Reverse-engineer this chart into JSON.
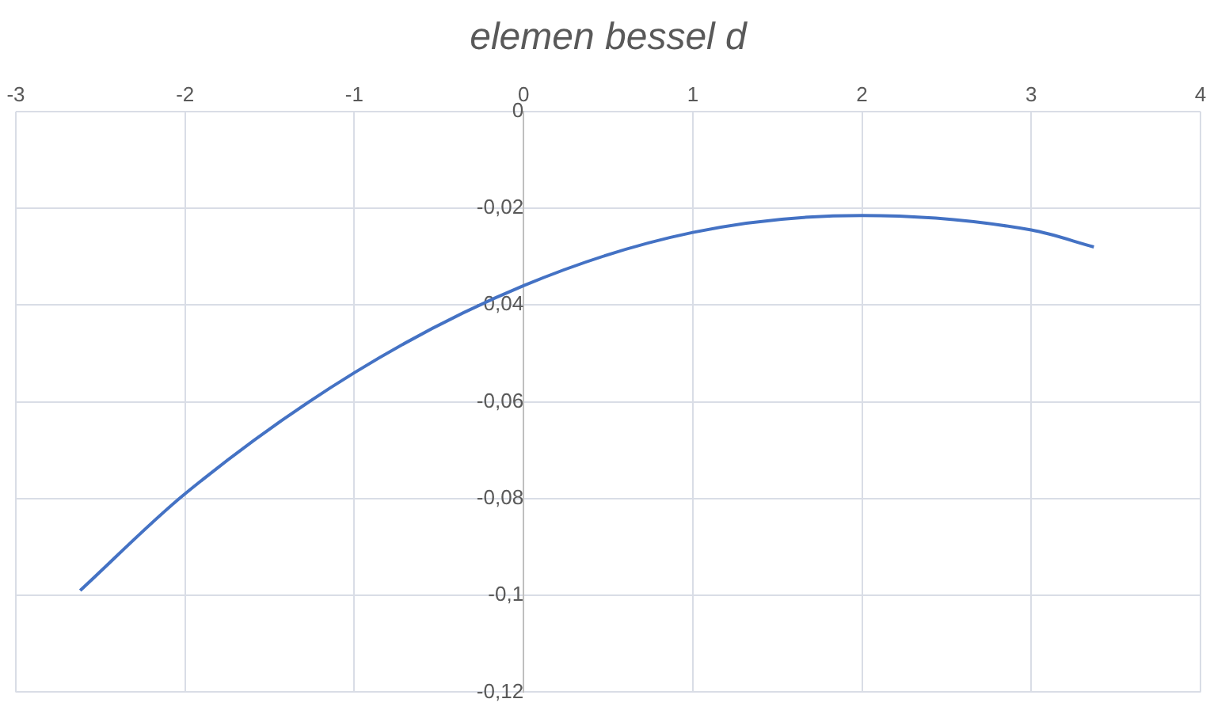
{
  "chart_data": {
    "type": "line",
    "title": "elemen bessel d",
    "series": [
      {
        "color": "#4472c4",
        "x": [
          -2.62,
          -2,
          -1,
          0,
          1,
          2,
          3,
          3.37
        ],
        "values": [
          -0.099,
          -0.079,
          -0.054,
          -0.036,
          -0.025,
          -0.0215,
          -0.0245,
          -0.028
        ]
      }
    ],
    "xlim": [
      -3,
      4
    ],
    "xticks": [
      -3,
      -2,
      -1,
      0,
      1,
      2,
      3,
      4
    ],
    "ylim": [
      -0.12,
      0
    ],
    "yticks": [
      {
        "value": -0.12,
        "label": "-0,12"
      },
      {
        "value": -0.1,
        "label": "-0,1"
      },
      {
        "value": -0.08,
        "label": "-0,08"
      },
      {
        "value": -0.06,
        "label": "-0,06"
      },
      {
        "value": -0.04,
        "label": "-0,04"
      },
      {
        "value": -0.02,
        "label": "-0,02"
      },
      0
    ],
    "grid": true,
    "marker": "none",
    "line_style": "solid",
    "legend": false
  }
}
